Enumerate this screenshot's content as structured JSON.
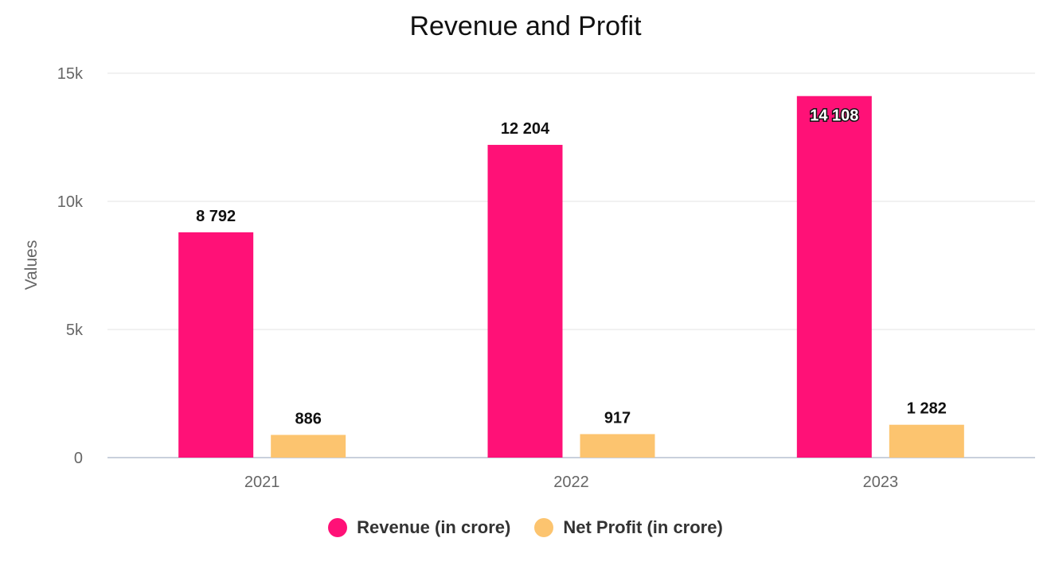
{
  "chart_data": {
    "type": "bar",
    "title": "Revenue and Profit",
    "xlabel": "",
    "ylabel": "Values",
    "categories": [
      "2021",
      "2022",
      "2023"
    ],
    "series": [
      {
        "name": "Revenue (in crore)",
        "values": [
          8792,
          12204,
          14108
        ],
        "labels": [
          "8 792",
          "12 204",
          "14 108"
        ],
        "color": "#ff1177"
      },
      {
        "name": "Net Profit (in crore)",
        "values": [
          886,
          917,
          1282
        ],
        "labels": [
          "886",
          "917",
          "1 282"
        ],
        "color": "#fcc46f"
      }
    ],
    "ylim": [
      0,
      15000
    ],
    "yticks": [
      0,
      5000,
      10000,
      15000
    ],
    "ytick_labels": [
      "0",
      "5k",
      "10k",
      "15k"
    ],
    "grid": true,
    "legend": "bottom-center"
  }
}
